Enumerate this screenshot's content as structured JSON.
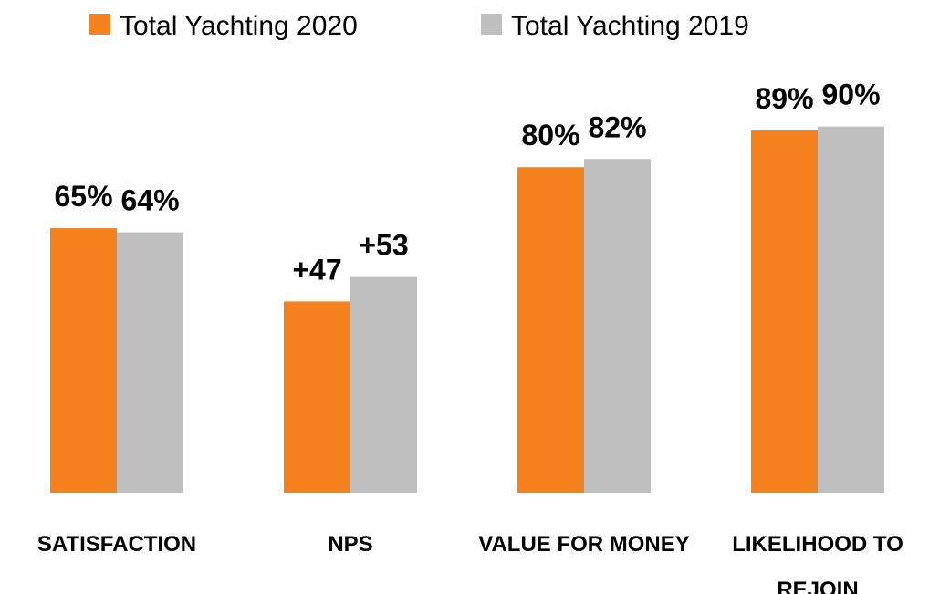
{
  "chart_data": {
    "type": "bar",
    "categories": [
      "SATISFACTION",
      "NPS",
      "VALUE FOR MONEY",
      "LIKELIHOOD TO REJOIN"
    ],
    "series": [
      {
        "name": "Total Yachting 2020",
        "color": "#f5821f",
        "values": [
          65,
          47,
          80,
          89
        ],
        "value_labels": [
          "65%",
          "+47",
          "80%",
          "89%"
        ]
      },
      {
        "name": "Total Yachting 2019",
        "color": "#bfbfbf",
        "values": [
          64,
          53,
          82,
          90
        ],
        "value_labels": [
          "64%",
          "+53",
          "82%",
          "90%"
        ]
      }
    ],
    "ylim": [
      0,
      100
    ],
    "legend": "top"
  }
}
